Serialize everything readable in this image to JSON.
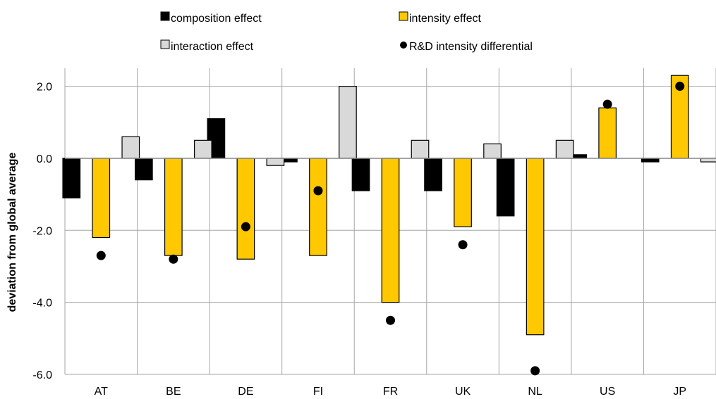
{
  "chart_data": {
    "type": "bar",
    "title": "",
    "xlabel": "",
    "ylabel": "deviation from global average",
    "categories": [
      "AT",
      "BE",
      "DE",
      "FI",
      "FR",
      "UK",
      "NL",
      "US",
      "JP"
    ],
    "ylim": [
      -6.0,
      2.5
    ],
    "yticks": [
      "2.0",
      "0.0",
      "-2.0",
      "-4.0",
      "-6.0"
    ],
    "ytick_values": [
      2.0,
      0.0,
      -2.0,
      -4.0,
      -6.0
    ],
    "grid": true,
    "legend_position": "top",
    "series": [
      {
        "name": "composition effect",
        "kind": "bar",
        "color": "#000000",
        "values": [
          -1.1,
          -0.6,
          1.1,
          -0.1,
          -0.9,
          -0.9,
          -1.6,
          0.1,
          -0.1
        ]
      },
      {
        "name": "intensity effect",
        "kind": "bar",
        "color": "#FFC800",
        "values": [
          -2.2,
          -2.7,
          -2.8,
          -2.7,
          -4.0,
          -1.9,
          -4.9,
          1.4,
          2.3
        ]
      },
      {
        "name": "interaction effect",
        "kind": "bar",
        "color": "#D9D9D9",
        "values": [
          0.6,
          0.5,
          -0.2,
          2.0,
          0.5,
          0.4,
          0.5,
          0.0,
          -0.1
        ]
      },
      {
        "name": "R&D intensity differential",
        "kind": "point",
        "color": "#000000",
        "values": [
          -2.7,
          -2.8,
          -1.9,
          -0.9,
          -4.5,
          -2.4,
          -5.9,
          1.5,
          2.0
        ]
      }
    ]
  }
}
